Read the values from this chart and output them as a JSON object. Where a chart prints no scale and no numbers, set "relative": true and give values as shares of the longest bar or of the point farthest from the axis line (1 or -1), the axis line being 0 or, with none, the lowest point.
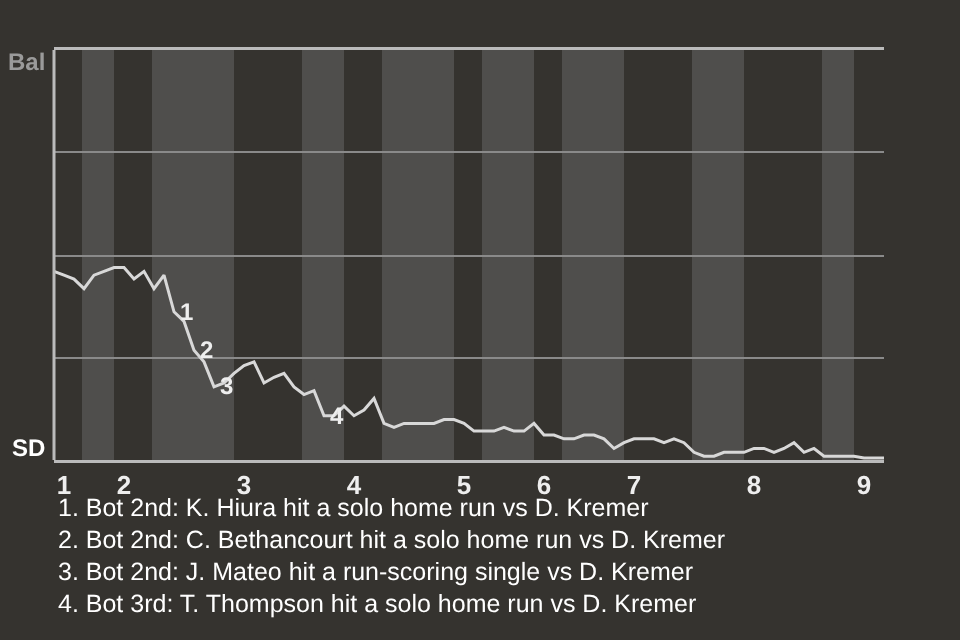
{
  "chart_data": {
    "type": "line",
    "relative": true,
    "categories": [
      null,
      "1",
      null,
      null,
      null,
      null,
      null,
      "2",
      null,
      null,
      null,
      null,
      null,
      null,
      null,
      null,
      null,
      null,
      null,
      "3",
      null,
      null,
      null,
      null,
      null,
      null,
      null,
      null,
      null,
      null,
      "4",
      null,
      null,
      null,
      null,
      null,
      null,
      null,
      null,
      null,
      null,
      "5",
      null,
      null,
      null,
      null,
      null,
      null,
      null,
      "6",
      null,
      null,
      null,
      null,
      null,
      null,
      null,
      null,
      "7",
      null,
      null,
      null,
      null,
      null,
      null,
      null,
      null,
      null,
      null,
      null,
      "8",
      null,
      null,
      null,
      null,
      null,
      null,
      null,
      null,
      null,
      null,
      "9",
      null,
      null
    ],
    "marker": "none",
    "line_style": "solid",
    "series": [
      {
        "color": "#d8d8d8",
        "values": [
          0.98,
          0.96,
          0.94,
          0.89,
          0.96,
          0.98,
          1,
          1,
          0.94,
          0.98,
          0.89,
          0.96,
          0.77,
          0.72,
          0.57,
          0.51,
          0.38,
          0.4,
          0.45,
          0.49,
          0.51,
          0.4,
          0.43,
          0.45,
          0.38,
          0.34,
          0.36,
          0.23,
          0.23,
          0.28,
          0.23,
          0.26,
          0.32,
          0.19,
          0.17,
          0.19,
          0.19,
          0.19,
          0.19,
          0.21,
          0.21,
          0.19,
          0.15,
          0.15,
          0.15,
          0.17,
          0.15,
          0.15,
          0.19,
          0.13,
          0.13,
          0.11,
          0.11,
          0.13,
          0.13,
          0.11,
          0.06,
          0.09,
          0.11,
          0.11,
          0.11,
          0.09,
          0.11,
          0.09,
          0.04,
          0.02,
          0.02,
          0.04,
          0.04,
          0.04,
          0.06,
          0.06,
          0.04,
          0.06,
          0.09,
          0.04,
          0.06,
          0.02,
          0.02,
          0.02,
          0.02,
          0.01,
          0.01,
          0.01
        ]
      }
    ],
    "ref_lines": [
      {
        "axis": "y",
        "value": 0.53,
        "color": "#8a8a8a"
      },
      {
        "axis": "y",
        "value": 1.06,
        "color": "#8a8a8a"
      },
      {
        "axis": "y",
        "value": 1.6,
        "color": "#8a8a8a"
      }
    ],
    "annotations": [
      {
        "text": "1",
        "y": 0.77
      },
      {
        "text": "2",
        "y": 0.57
      },
      {
        "text": "3",
        "y": 0.38
      },
      {
        "text": "4",
        "y": 0.23
      },
      "Bal",
      "SD",
      "1. Bot 2nd: K. Hiura hit a solo home run vs D. Kremer",
      "2. Bot 2nd: C. Bethancourt hit a solo home run vs D. Kremer",
      "3. Bot 2nd: J. Mateo hit a run-scoring single vs D. Kremer",
      "4. Bot 3rd: T. Thompson hit a solo home run vs D. Kremer"
    ]
  }
}
